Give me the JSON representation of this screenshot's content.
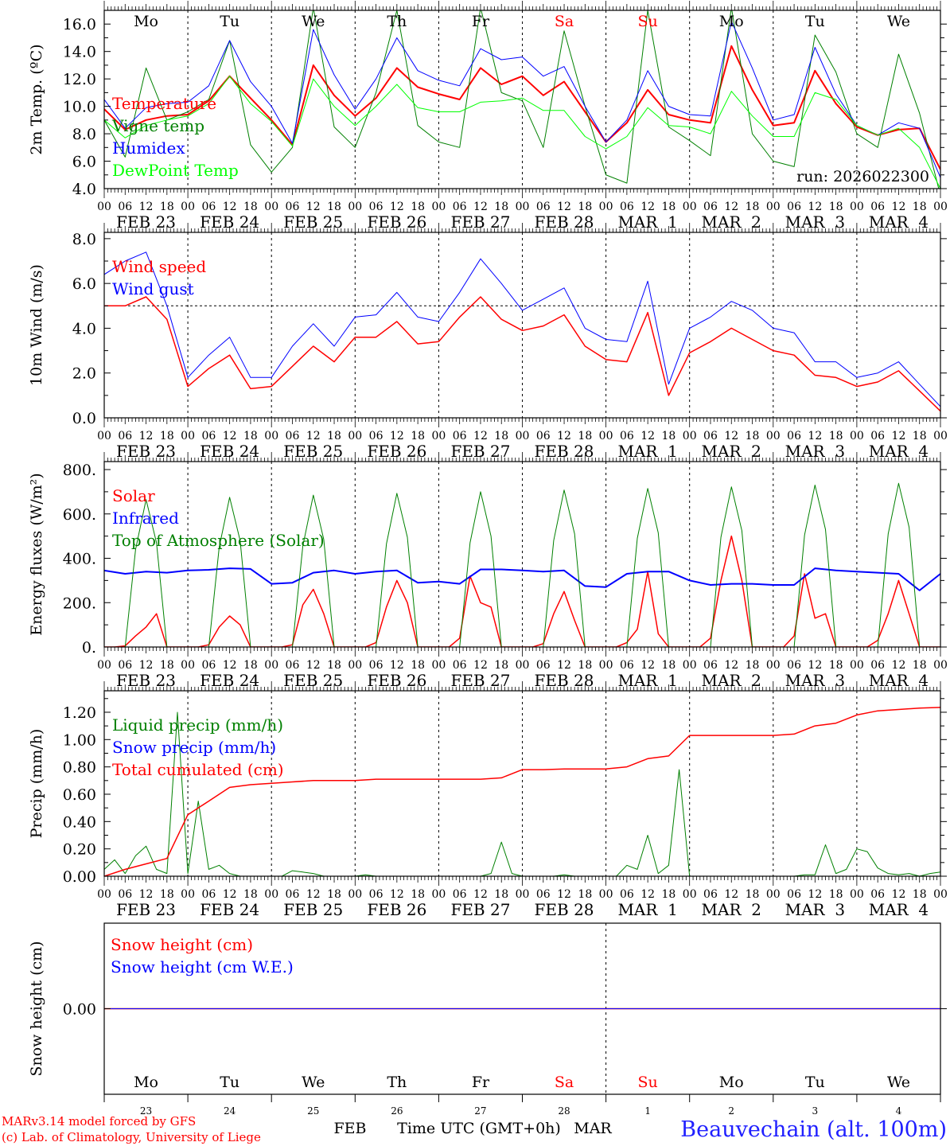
{
  "run_label": "run: 2026022300",
  "days": [
    "FEB 23",
    "FEB 24",
    "FEB 25",
    "FEB 26",
    "FEB 27",
    "FEB 28",
    "MAR  1",
    "MAR  2",
    "MAR  3",
    "MAR  4"
  ],
  "weekdays": [
    {
      "label": "Mo",
      "color": "#000000"
    },
    {
      "label": "Tu",
      "color": "#000000"
    },
    {
      "label": "We",
      "color": "#000000"
    },
    {
      "label": "Th",
      "color": "#000000"
    },
    {
      "label": "Fr",
      "color": "#000000"
    },
    {
      "label": "Sa",
      "color": "#ff0000"
    },
    {
      "label": "Su",
      "color": "#ff0000"
    },
    {
      "label": "Mo",
      "color": "#000000"
    },
    {
      "label": "Tu",
      "color": "#000000"
    },
    {
      "label": "We",
      "color": "#000000"
    }
  ],
  "hour_labels": [
    "00",
    "06",
    "12",
    "18"
  ],
  "day_numbers": [
    "23",
    "24",
    "25",
    "26",
    "27",
    "28",
    "1",
    "2",
    "3",
    "4"
  ],
  "month_labels": [
    "FEB",
    "MAR"
  ],
  "xlabel": "Time UTC (GMT+0h)",
  "footer": {
    "model": "MARv3.14 model forced by GFS",
    "credit": "(c) Lab. of Climatology, University of Liege",
    "station": "Beauvechain (alt. 100m)"
  },
  "chart_data": [
    {
      "type": "line",
      "id": "temperature",
      "ylabel": "2m Temp. (ºC)",
      "ylim": [
        4.0,
        17.0
      ],
      "yticks": [
        {
          "v": 4,
          "label": "4.0"
        },
        {
          "v": 6,
          "label": "6.0"
        },
        {
          "v": 8,
          "label": "8.0"
        },
        {
          "v": 10,
          "label": "10.0"
        },
        {
          "v": 12,
          "label": "12.0"
        },
        {
          "v": 14,
          "label": "14.0"
        },
        {
          "v": 16,
          "label": "16.0"
        }
      ],
      "step_hours": 6,
      "series": [
        {
          "name": "Temperature",
          "color": "#ff0000",
          "width": 2,
          "values": [
            9.8,
            8.3,
            9.0,
            9.3,
            9.4,
            10.4,
            12.2,
            10.6,
            9.0,
            7.2,
            13.0,
            10.8,
            9.3,
            10.6,
            12.8,
            11.4,
            10.9,
            10.5,
            12.8,
            11.6,
            12.2,
            10.8,
            11.8,
            9.6,
            7.4,
            8.8,
            11.2,
            9.4,
            9.0,
            8.8,
            14.4,
            11.2,
            8.6,
            8.8,
            12.6,
            10.2,
            8.5,
            7.9,
            8.3,
            8.4,
            5.4
          ]
        },
        {
          "name": "Vigne temp",
          "color": "#008000",
          "width": 1,
          "values": [
            9.0,
            6.3,
            12.8,
            9.0,
            9.6,
            10.5,
            14.8,
            7.2,
            5.2,
            7.0,
            17.2,
            8.5,
            7.0,
            11.0,
            17.0,
            8.6,
            7.4,
            7.0,
            17.2,
            11.0,
            10.4,
            7.0,
            15.5,
            10.0,
            5.0,
            4.4,
            17.0,
            8.5,
            7.5,
            6.4,
            17.2,
            8.0,
            6.0,
            5.6,
            15.2,
            12.5,
            8.0,
            7.0,
            13.8,
            9.5,
            3.5
          ]
        },
        {
          "name": "Humidex",
          "color": "#0000ff",
          "width": 1,
          "values": [
            10.5,
            8.4,
            9.9,
            10.2,
            10.3,
            11.5,
            14.8,
            11.8,
            10.0,
            7.3,
            15.6,
            12.3,
            9.8,
            12.0,
            15.0,
            12.6,
            11.9,
            11.5,
            14.2,
            13.4,
            13.6,
            12.2,
            12.9,
            10.0,
            7.4,
            9.0,
            12.6,
            10.0,
            9.4,
            9.3,
            16.2,
            12.8,
            9.0,
            9.4,
            14.3,
            10.9,
            8.6,
            7.9,
            8.8,
            8.4,
            4.8
          ]
        },
        {
          "name": "DewPoint Temp",
          "color": "#00ff00",
          "width": 1,
          "values": [
            9.0,
            7.7,
            8.6,
            9.0,
            9.3,
            10.2,
            12.2,
            10.2,
            8.9,
            7.1,
            12.0,
            10.0,
            8.6,
            10.0,
            11.6,
            9.9,
            9.6,
            9.6,
            10.3,
            10.4,
            10.6,
            9.7,
            9.7,
            7.8,
            6.9,
            7.8,
            9.9,
            8.6,
            8.5,
            8.0,
            11.1,
            9.3,
            7.8,
            7.8,
            11.0,
            10.5,
            8.6,
            7.9,
            8.4,
            7.0,
            4.0
          ]
        }
      ]
    },
    {
      "type": "line",
      "id": "wind",
      "ylabel": "10m Wind (m/s)",
      "ylim": [
        0.0,
        8.28
      ],
      "reference_line": 5.0,
      "yticks": [
        {
          "v": 0,
          "label": "0.0"
        },
        {
          "v": 2,
          "label": "2.0"
        },
        {
          "v": 4,
          "label": "4.0"
        },
        {
          "v": 6,
          "label": "6.0"
        },
        {
          "v": 8,
          "label": "8.0"
        }
      ],
      "step_hours": 6,
      "series": [
        {
          "name": "Wind speed",
          "color": "#ff0000",
          "width": 1.5,
          "values": [
            5.0,
            5.0,
            5.4,
            4.4,
            1.4,
            2.2,
            2.8,
            1.3,
            1.4,
            2.3,
            3.2,
            2.5,
            3.6,
            3.6,
            4.3,
            3.3,
            3.4,
            4.5,
            5.4,
            4.4,
            3.9,
            4.1,
            4.6,
            3.2,
            2.6,
            2.5,
            4.7,
            1.0,
            2.9,
            3.4,
            4.0,
            3.5,
            3.0,
            2.8,
            1.9,
            1.8,
            1.4,
            1.6,
            2.1,
            1.2,
            0.3
          ]
        },
        {
          "name": "Wind gust",
          "color": "#0000ff",
          "width": 1,
          "values": [
            6.4,
            7.0,
            7.4,
            5.0,
            1.8,
            2.8,
            3.6,
            1.8,
            1.8,
            3.2,
            4.2,
            3.2,
            4.5,
            4.6,
            5.6,
            4.5,
            4.3,
            5.6,
            7.1,
            6.0,
            4.8,
            5.3,
            5.8,
            4.0,
            3.5,
            3.4,
            6.1,
            1.5,
            4.0,
            4.5,
            5.2,
            4.8,
            4.0,
            3.8,
            2.5,
            2.5,
            1.8,
            2.0,
            2.5,
            1.5,
            0.5
          ]
        }
      ]
    },
    {
      "type": "line",
      "id": "energy",
      "ylabel": "Energy fluxes (W/m²)",
      "ylim": [
        0,
        836
      ],
      "yticks": [
        {
          "v": 0,
          "label": "0."
        },
        {
          "v": 200,
          "label": "200."
        },
        {
          "v": 400,
          "label": "400."
        },
        {
          "v": 600,
          "label": "600."
        },
        {
          "v": 800,
          "label": "800."
        }
      ],
      "series": [
        {
          "name": "Solar",
          "color": "#ff0000",
          "width": 1.5,
          "step_hours": 3,
          "values": [
            0,
            0,
            5,
            50,
            90,
            150,
            0,
            0,
            0,
            0,
            10,
            90,
            140,
            100,
            0,
            0,
            0,
            0,
            10,
            190,
            260,
            150,
            0,
            0,
            0,
            0,
            20,
            180,
            300,
            200,
            0,
            0,
            0,
            0,
            40,
            320,
            200,
            180,
            0,
            0,
            0,
            0,
            15,
            150,
            250,
            120,
            0,
            0,
            0,
            0,
            20,
            80,
            340,
            60,
            0,
            0,
            0,
            0,
            40,
            300,
            500,
            300,
            0,
            0,
            0,
            0,
            50,
            330,
            130,
            150,
            0,
            0,
            0,
            0,
            30,
            150,
            300,
            150,
            0,
            0,
            0
          ]
        },
        {
          "name": "Infrared",
          "color": "#0000ff",
          "width": 2,
          "step_hours": 6,
          "values": [
            345,
            330,
            340,
            335,
            345,
            348,
            355,
            352,
            285,
            290,
            335,
            345,
            330,
            340,
            345,
            290,
            295,
            285,
            350,
            350,
            345,
            340,
            345,
            275,
            270,
            330,
            340,
            340,
            300,
            280,
            285,
            285,
            280,
            280,
            355,
            345,
            340,
            335,
            330,
            255,
            330
          ]
        },
        {
          "name": "Top of Atmosphere (Solar)",
          "color": "#008000",
          "width": 1,
          "step_hours": 3,
          "values": [
            0,
            0,
            0,
            440,
            665,
            470,
            0,
            0,
            0,
            0,
            0,
            450,
            675,
            480,
            0,
            0,
            0,
            0,
            0,
            455,
            685,
            485,
            0,
            0,
            0,
            0,
            0,
            465,
            693,
            495,
            0,
            0,
            0,
            0,
            0,
            470,
            700,
            500,
            0,
            0,
            0,
            0,
            0,
            480,
            708,
            510,
            0,
            0,
            0,
            0,
            0,
            490,
            715,
            515,
            0,
            0,
            0,
            0,
            0,
            495,
            722,
            525,
            0,
            0,
            0,
            0,
            0,
            505,
            730,
            530,
            0,
            0,
            0,
            0,
            0,
            510,
            738,
            540,
            0,
            0,
            0
          ]
        }
      ]
    },
    {
      "type": "line",
      "id": "precip",
      "ylabel": "Precip (mm/h)",
      "ylim": [
        0,
        1.357
      ],
      "yticks": [
        {
          "v": 0,
          "label": "0.00"
        },
        {
          "v": 0.2,
          "label": "0.20"
        },
        {
          "v": 0.4,
          "label": "0.40"
        },
        {
          "v": 0.6,
          "label": "0.60"
        },
        {
          "v": 0.8,
          "label": "0.80"
        },
        {
          "v": 1.0,
          "label": "1.00"
        },
        {
          "v": 1.2,
          "label": "1.20"
        }
      ],
      "series": [
        {
          "name": "Liquid precip (mm/h)",
          "color": "#008000",
          "width": 1,
          "step_hours": 3,
          "values": [
            0.05,
            0.12,
            0.02,
            0.15,
            0.22,
            0.05,
            0.02,
            1.2,
            0.02,
            0.55,
            0.05,
            0.08,
            0.02,
            0,
            0,
            0,
            0,
            0,
            0.04,
            0.03,
            0.02,
            0,
            0,
            0,
            0,
            0.01,
            0,
            0,
            0,
            0,
            0,
            0,
            0,
            0,
            0,
            0,
            0,
            0.02,
            0.25,
            0.02,
            0,
            0,
            0,
            0,
            0.01,
            0,
            0,
            0,
            0,
            0,
            0.08,
            0.05,
            0.3,
            0.02,
            0.08,
            0.78,
            0,
            0,
            0,
            0,
            0,
            0,
            0,
            0,
            0,
            0,
            0,
            0.01,
            0.01,
            0.23,
            0.02,
            0.05,
            0.2,
            0.18,
            0.06,
            0.02,
            0.01,
            0.02,
            0,
            0.02,
            0.03
          ]
        },
        {
          "name": "Snow precip (mm/h)",
          "color": "#0000ff",
          "width": 1,
          "step_hours": 240,
          "values": [
            0,
            0
          ]
        },
        {
          "name": "Total cumulated (cm)",
          "color": "#ff0000",
          "width": 1.5,
          "step_hours": 6,
          "values": [
            0,
            0.05,
            0.09,
            0.13,
            0.45,
            0.55,
            0.65,
            0.67,
            0.68,
            0.69,
            0.7,
            0.7,
            0.7,
            0.71,
            0.71,
            0.71,
            0.71,
            0.71,
            0.71,
            0.72,
            0.78,
            0.78,
            0.785,
            0.785,
            0.785,
            0.8,
            0.86,
            0.88,
            1.03,
            1.03,
            1.03,
            1.03,
            1.03,
            1.04,
            1.1,
            1.12,
            1.18,
            1.21,
            1.22,
            1.23,
            1.235
          ]
        }
      ]
    },
    {
      "type": "line",
      "id": "snow",
      "ylabel": "Snow height (cm)",
      "ylim": [
        -1,
        1
      ],
      "yticks": [
        {
          "v": 0,
          "label": "0.00"
        }
      ],
      "series": [
        {
          "name": "Snow height (cm)",
          "color": "#ff0000",
          "width": 1.5,
          "step_hours": 240,
          "values": [
            0,
            0
          ]
        },
        {
          "name": "Snow height (cm W.E.)",
          "color": "#0000ff",
          "width": 1,
          "step_hours": 240,
          "values": [
            0,
            0
          ]
        }
      ]
    }
  ]
}
